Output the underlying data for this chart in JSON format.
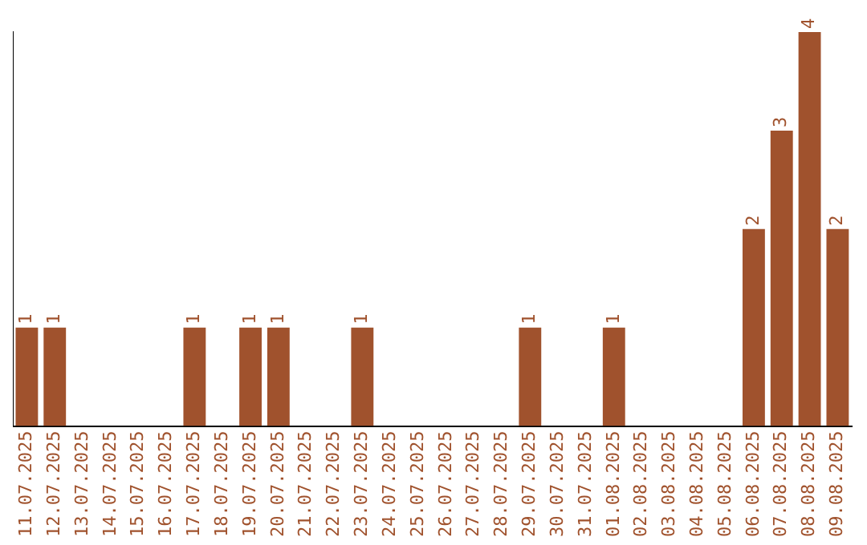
{
  "chart_data": {
    "type": "bar",
    "categories": [
      "11.07.2025",
      "12.07.2025",
      "13.07.2025",
      "14.07.2025",
      "15.07.2025",
      "16.07.2025",
      "17.07.2025",
      "18.07.2025",
      "19.07.2025",
      "20.07.2025",
      "21.07.2025",
      "22.07.2025",
      "23.07.2025",
      "24.07.2025",
      "25.07.2025",
      "26.07.2025",
      "27.07.2025",
      "28.07.2025",
      "29.07.2025",
      "30.07.2025",
      "31.07.2025",
      "01.08.2025",
      "02.08.2025",
      "03.08.2025",
      "04.08.2025",
      "05.08.2025",
      "06.08.2025",
      "07.08.2025",
      "08.08.2025",
      "09.08.2025"
    ],
    "values": [
      1,
      1,
      0,
      0,
      0,
      0,
      1,
      0,
      1,
      1,
      0,
      0,
      1,
      0,
      0,
      0,
      0,
      0,
      1,
      0,
      0,
      1,
      0,
      0,
      0,
      0,
      2,
      3,
      4,
      2
    ],
    "value_labels": [
      "1",
      "1",
      null,
      null,
      null,
      null,
      "1",
      null,
      "1",
      "1",
      null,
      null,
      "1",
      null,
      null,
      null,
      null,
      null,
      "1",
      null,
      null,
      "1",
      null,
      null,
      null,
      null,
      "2",
      "3",
      "4",
      "2"
    ],
    "color": "#a0522d",
    "tick_labels": "x",
    "grid": false,
    "legend": false
  }
}
